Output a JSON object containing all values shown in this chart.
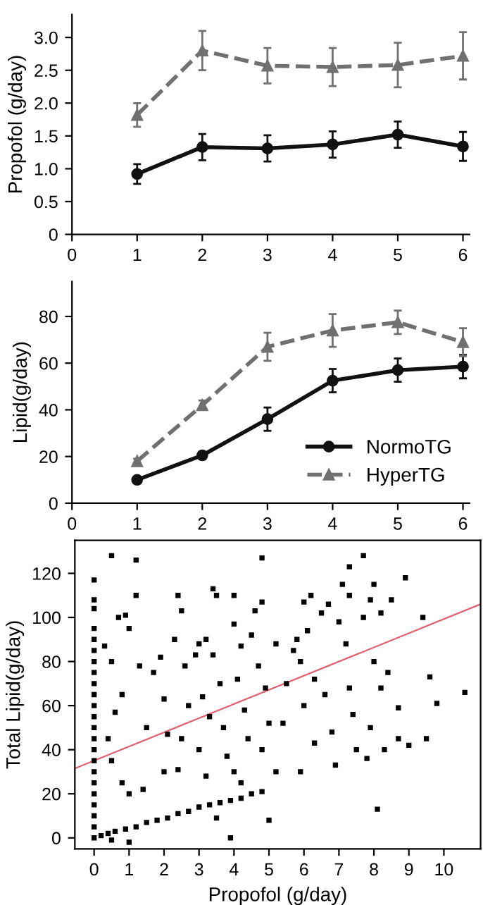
{
  "chart_data": [
    {
      "type": "line",
      "ylabel": "Propofol (g/day)",
      "xlim": [
        0,
        6.1
      ],
      "ylim": [
        0,
        3.35
      ],
      "xticks": [
        0,
        1,
        2,
        3,
        4,
        5,
        6
      ],
      "yticks": [
        0,
        0.5,
        {
          "value": 1,
          "label": "1.0"
        },
        1.5,
        {
          "value": 2,
          "label": "2.0"
        },
        2.5,
        {
          "value": 3,
          "label": "3.0"
        }
      ],
      "grid": false,
      "legend": false,
      "x": [
        1,
        2,
        3,
        4,
        5,
        6
      ],
      "series": [
        {
          "color": "#111111",
          "marker": "circle",
          "line_style": "solid",
          "values": [
            0.92,
            1.33,
            1.31,
            1.37,
            1.52,
            1.34
          ],
          "errors": [
            0.15,
            0.2,
            0.2,
            0.2,
            0.2,
            0.22
          ]
        },
        {
          "color": "#707070",
          "marker": "triangle",
          "line_style": "dashed",
          "values": [
            1.82,
            2.8,
            2.57,
            2.55,
            2.58,
            2.72
          ],
          "errors": [
            0.18,
            0.3,
            0.27,
            0.29,
            0.34,
            0.36
          ]
        }
      ]
    },
    {
      "type": "line",
      "ylabel": "Lipid(g/day)",
      "xlim": [
        0,
        6.1
      ],
      "ylim": [
        0,
        95
      ],
      "xticks": [
        0,
        1,
        2,
        3,
        4,
        5,
        6
      ],
      "yticks": [
        0,
        20,
        40,
        60,
        80
      ],
      "grid": false,
      "legend": "bottom right",
      "x": [
        1,
        2,
        3,
        4,
        5,
        6
      ],
      "series": [
        {
          "name": "NormoTG",
          "color": "#111111",
          "marker": "circle",
          "line_style": "solid",
          "values": [
            10,
            20.5,
            36,
            52.5,
            57,
            58.5
          ],
          "errors": [
            1,
            1.5,
            5,
            5,
            5,
            5
          ]
        },
        {
          "name": "HyperTG",
          "color": "#707070",
          "marker": "triangle",
          "line_style": "dashed",
          "values": [
            18,
            42,
            67,
            74,
            77.5,
            69
          ],
          "errors": [
            1,
            2,
            6,
            7,
            5,
            6
          ]
        }
      ]
    },
    {
      "type": "scatter",
      "xlabel": "Propofol (g/day)",
      "ylabel": "Total Lipid(g/day)",
      "xlim": [
        -0.55,
        11.05
      ],
      "ylim": [
        -5,
        135
      ],
      "xticks": [
        0,
        1,
        2,
        3,
        4,
        5,
        6,
        7,
        8,
        9,
        10
      ],
      "yticks": [
        0,
        20,
        40,
        60,
        80,
        100,
        120
      ],
      "grid": false,
      "legend": false,
      "series": [
        {
          "type": "scatter",
          "color": "#000000",
          "marker": "square",
          "x": [
            0,
            0,
            0,
            0,
            0,
            0,
            0,
            0,
            0,
            0,
            0,
            0,
            0,
            0,
            0,
            0,
            0,
            0,
            0,
            0,
            0,
            0,
            0,
            0.2,
            0.4,
            0.6,
            0.9,
            1.2,
            1.5,
            1.8,
            2.1,
            2.4,
            2.7,
            3.0,
            3.3,
            3.6,
            3.9,
            4.2,
            4.5,
            4.8,
            1.0,
            0.5,
            0.3,
            0.5,
            0.7,
            0.9,
            1.2,
            1.0,
            1.3,
            0.8,
            0.6,
            0.4,
            0.5,
            0.8,
            1.0,
            1.4,
            1.5,
            1.7,
            1.9,
            2.0,
            2.1,
            2.0,
            2.4,
            2.5,
            2.3,
            2.6,
            2.7,
            2.5,
            2.4,
            2.9,
            3.0,
            3.2,
            3.1,
            3.3,
            3.0,
            3.2,
            3.4,
            3.5,
            3.4,
            3.6,
            3.7,
            3.5,
            3.8,
            3.9,
            4.0,
            4.0,
            4.2,
            4.1,
            4.3,
            4.4,
            4.0,
            4.2,
            4.6,
            4.8,
            4.5,
            4.7,
            4.9,
            5.0,
            4.8,
            5.2,
            5.0,
            5.2,
            5.5,
            5.4,
            5.7,
            5.8,
            5.9,
            6.0,
            6.1,
            6.0,
            6.2,
            6.3,
            5.9,
            6.3,
            6.5,
            6.7,
            6.6,
            6.8,
            6.9,
            7.0,
            7.1,
            7.2,
            7.3,
            7.3,
            7.3,
            7.4,
            7.5,
            7.7,
            7.8,
            8.0,
            7.9,
            8.0,
            7.9,
            8.1,
            8.2,
            8.2,
            8.3,
            8.4,
            8.5,
            8.7,
            8.7,
            8.9,
            9.0,
            9.4,
            9.5,
            9.6,
            9.8,
            10.6,
            0.5,
            1.2,
            4.8,
            7.7
          ],
          "values": [
            0,
            5,
            10,
            15,
            20,
            25,
            30,
            35,
            40,
            45,
            50,
            55,
            60,
            65,
            70,
            75,
            80,
            85,
            90,
            95,
            104,
            108,
            117,
            1,
            2,
            3,
            4,
            5,
            7,
            8,
            9,
            11,
            12,
            14,
            15,
            16,
            17,
            18,
            20,
            21,
            -2,
            -1,
            87,
            80,
            100,
            101,
            110,
            95,
            78,
            65,
            57,
            45,
            35,
            25,
            20,
            22,
            50,
            75,
            82,
            63,
            47,
            30,
            110,
            103,
            90,
            78,
            60,
            45,
            31,
            83,
            88,
            90,
            64,
            55,
            40,
            28,
            113,
            110,
            83,
            70,
            50,
            9,
            37,
            0,
            110,
            97,
            87,
            72,
            58,
            45,
            30,
            25,
            103,
            107,
            92,
            78,
            68,
            52,
            40,
            88,
            8,
            30,
            70,
            52,
            85,
            90,
            80,
            107,
            94,
            60,
            110,
            72,
            30,
            43,
            102,
            106,
            65,
            48,
            33,
            98,
            115,
            88,
            110,
            123,
            68,
            56,
            40,
            100,
            36,
            115,
            108,
            80,
            50,
            13,
            102,
            68,
            40,
            75,
            108,
            59,
            45,
            118,
            42,
            100,
            45,
            73,
            61,
            66,
            128,
            126,
            127,
            128
          ]
        },
        {
          "type": "line",
          "color": "#e06070",
          "marker": "none",
          "line_style": "solid",
          "x": [
            -0.55,
            11.05
          ],
          "values": [
            31.5,
            106
          ]
        }
      ]
    }
  ]
}
